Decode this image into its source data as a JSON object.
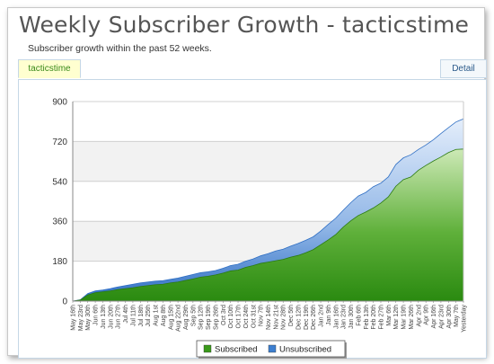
{
  "title": "Weekly Subscriber Growth - tacticstime",
  "subtitle": "Subscriber growth within the past 52 weeks.",
  "tabs": {
    "active": "tacticstime",
    "detail": "Detail"
  },
  "colors": {
    "subscribed": "#3a9a1a",
    "unsubscribed": "#3d7fd0"
  },
  "chart_data": {
    "type": "area",
    "ylim": [
      0,
      900
    ],
    "yticks": [
      0,
      180,
      360,
      540,
      720,
      900
    ],
    "grid": true,
    "legend_position": "bottom-center",
    "categories": [
      "May 16th",
      "May 23rd",
      "May 30th",
      "Jun 6th",
      "Jun 13th",
      "Jun 20th",
      "Jun 27th",
      "Jul 4th",
      "Jul 11th",
      "Jul 18th",
      "Jul 25th",
      "Aug 1st",
      "Aug 8th",
      "Aug 15th",
      "Aug 22nd",
      "Aug 29th",
      "Sep 5th",
      "Sep 12th",
      "Sep 19th",
      "Sep 26th",
      "Oct 3rd",
      "Oct 10th",
      "Oct 17th",
      "Oct 24th",
      "Oct 31st",
      "Nov 7th",
      "Nov 14th",
      "Nov 21st",
      "Nov 28th",
      "Dec 5th",
      "Dec 12th",
      "Dec 19th",
      "Dec 26th",
      "Jan 2nd",
      "Jan 9th",
      "Jan 16th",
      "Jan 23rd",
      "Jan 30th",
      "Feb 6th",
      "Feb 13th",
      "Feb 20th",
      "Feb 27th",
      "Mar 6th",
      "Mar 12th",
      "Mar 19th",
      "Mar 26th",
      "Apr 2nd",
      "Apr 9th",
      "Apr 16th",
      "Apr 23rd",
      "Apr 30th",
      "May 7th",
      "Yesterday"
    ],
    "series": [
      {
        "name": "Subscribed",
        "values": [
          0,
          5,
          28,
          38,
          42,
          46,
          52,
          56,
          60,
          66,
          70,
          74,
          76,
          82,
          86,
          93,
          100,
          108,
          112,
          118,
          126,
          136,
          140,
          152,
          160,
          170,
          176,
          182,
          188,
          198,
          206,
          218,
          232,
          254,
          276,
          300,
          334,
          362,
          386,
          402,
          420,
          442,
          470,
          518,
          548,
          560,
          590,
          612,
          632,
          650,
          670,
          684,
          686
        ]
      },
      {
        "name": "Unsubscribed",
        "values": [
          0,
          6,
          34,
          46,
          50,
          56,
          64,
          70,
          76,
          82,
          86,
          90,
          92,
          98,
          104,
          112,
          120,
          128,
          132,
          138,
          148,
          160,
          166,
          180,
          190,
          204,
          214,
          226,
          234,
          248,
          260,
          274,
          290,
          316,
          346,
          374,
          410,
          444,
          474,
          490,
          516,
          532,
          560,
          616,
          646,
          660,
          684,
          704,
          728,
          756,
          782,
          808,
          822
        ]
      }
    ]
  },
  "legend": [
    {
      "label": "Subscribed",
      "color": "#3a9a1a"
    },
    {
      "label": "Unsubscribed",
      "color": "#3d7fd0"
    }
  ]
}
